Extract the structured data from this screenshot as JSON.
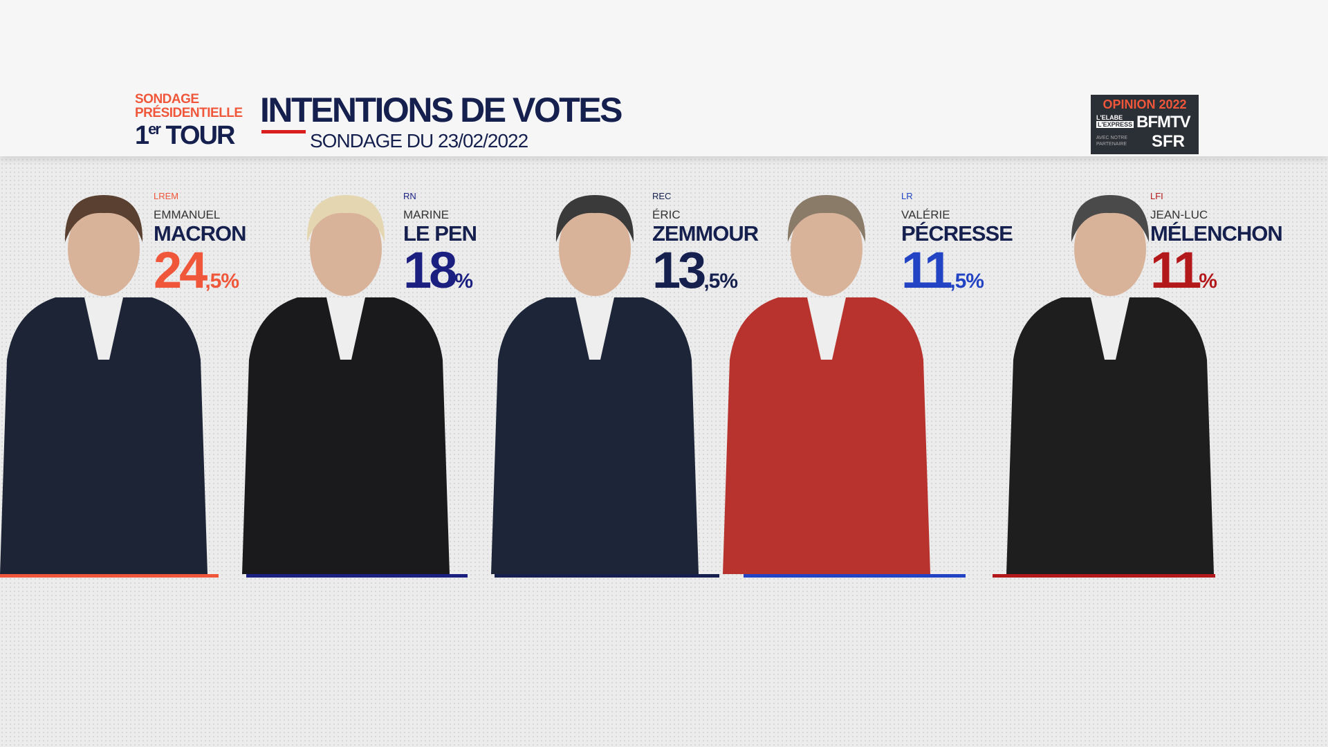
{
  "header": {
    "tag_line1": "SONDAGE",
    "tag_line2": "PRÉSIDENTIELLE",
    "round_number": "1",
    "round_suffix": "er",
    "round_word": "TOUR",
    "title": "INTENTIONS DE VOTES",
    "subtitle": "SONDAGE DU 23/02/2022"
  },
  "logo": {
    "title": "OPINION 2022",
    "line1": "L'ELABE",
    "line2": "L'EXPRESS",
    "brand": "BFMTV",
    "partner_text": "AVEC NOTRE PARTENAIRE",
    "partner": "SFR"
  },
  "candidates": [
    {
      "party": "LREM",
      "first_name": "EMMANUEL",
      "last_name": "MACRON",
      "value_main": "24",
      "value_dec": ",5",
      "unit": "%",
      "color": "#f0563a"
    },
    {
      "party": "RN",
      "first_name": "MARINE",
      "last_name": "LE PEN",
      "value_main": "18",
      "unit": "%",
      "color": "#1a1f80"
    },
    {
      "party": "REC",
      "first_name": "ÉRIC",
      "last_name": "ZEMMOUR",
      "value_main": "13",
      "value_dec": ",5",
      "unit": "%",
      "color": "#15204e"
    },
    {
      "party": "LR",
      "first_name": "VALÉRIE",
      "last_name": "PÉCRESSE",
      "value_main": "11",
      "value_dec": ",5",
      "unit": "%",
      "color": "#2243c4"
    },
    {
      "party": "LFI",
      "first_name": "JEAN-LUC",
      "last_name": "MÉLENCHON",
      "value_main": "11",
      "unit": "%",
      "color": "#b3191b"
    }
  ]
}
